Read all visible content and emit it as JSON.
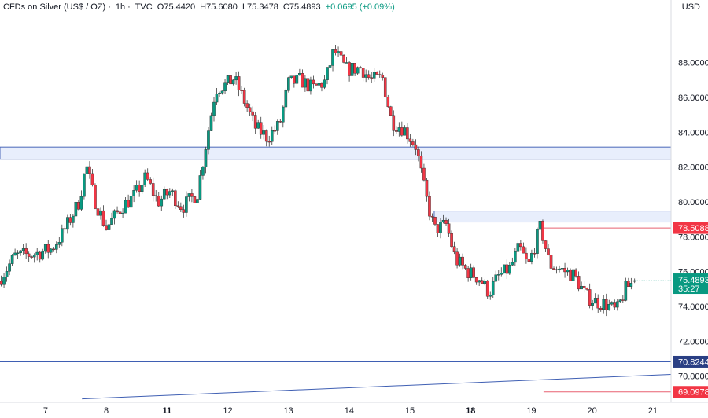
{
  "header": {
    "symbol": "CFDs on Silver (US$ / OZ)",
    "interval": "1h",
    "source": "TVC",
    "open": "O75.4420",
    "high": "H75.6080",
    "low": "L75.3478",
    "close": "C75.4893",
    "change": "+0.0695 (+0.09%)"
  },
  "currency": "USD",
  "colors": {
    "up": "#089981",
    "down": "#f23645",
    "zone_fill": "#e8eefc",
    "zone_border": "#4a67b8",
    "line_blue": "#3f5fb3",
    "line_red": "#e86171",
    "badge_green": "#089981",
    "badge_red": "#f23645",
    "badge_navy": "#2a3f84"
  },
  "chart_data": {
    "type": "candlestick",
    "ylim": [
      68.5,
      90.6
    ],
    "y_ticks": [
      "88.0000",
      "86.0000",
      "84.0000",
      "82.0000",
      "80.0000",
      "78.0000",
      "76.0000",
      "74.0000",
      "72.0000",
      "70.0000"
    ],
    "x_ticks": [
      {
        "label": "7",
        "bold": false,
        "t": 0.75
      },
      {
        "label": "8",
        "bold": false,
        "t": 1.75
      },
      {
        "label": "11",
        "bold": true,
        "t": 2.75
      },
      {
        "label": "12",
        "bold": false,
        "t": 3.75
      },
      {
        "label": "13",
        "bold": false,
        "t": 4.75
      },
      {
        "label": "14",
        "bold": false,
        "t": 5.75
      },
      {
        "label": "15",
        "bold": false,
        "t": 6.75
      },
      {
        "label": "18",
        "bold": true,
        "t": 7.75
      },
      {
        "label": "19",
        "bold": false,
        "t": 8.75
      },
      {
        "label": "20",
        "bold": false,
        "t": 9.75
      },
      {
        "label": "21",
        "bold": false,
        "t": 10.75
      }
    ],
    "x_range": [
      0,
      11.05
    ],
    "path": [
      [
        0.0,
        75.6
      ],
      [
        0.25,
        76.9
      ],
      [
        0.55,
        77.0
      ],
      [
        0.85,
        77.3
      ],
      [
        1.05,
        78.3
      ],
      [
        1.3,
        80.0
      ],
      [
        1.42,
        82.1
      ],
      [
        1.55,
        80.2
      ],
      [
        1.75,
        78.5
      ],
      [
        2.0,
        79.7
      ],
      [
        2.2,
        80.3
      ],
      [
        2.4,
        81.4
      ],
      [
        2.6,
        80.0
      ],
      [
        2.8,
        80.6
      ],
      [
        3.0,
        79.7
      ],
      [
        3.25,
        80.5
      ],
      [
        3.4,
        83.5
      ],
      [
        3.55,
        86.5
      ],
      [
        3.75,
        86.8
      ],
      [
        3.85,
        87.1
      ],
      [
        4.05,
        85.6
      ],
      [
        4.2,
        84.3
      ],
      [
        4.4,
        83.7
      ],
      [
        4.6,
        84.4
      ],
      [
        4.75,
        86.8
      ],
      [
        4.95,
        87.0
      ],
      [
        5.15,
        86.5
      ],
      [
        5.35,
        86.9
      ],
      [
        5.5,
        88.7
      ],
      [
        5.7,
        87.6
      ],
      [
        5.95,
        87.7
      ],
      [
        6.1,
        87.0
      ],
      [
        6.3,
        87.1
      ],
      [
        6.45,
        84.6
      ],
      [
        6.65,
        84.2
      ],
      [
        6.85,
        83.2
      ],
      [
        7.0,
        80.5
      ],
      [
        7.15,
        78.4
      ],
      [
        7.35,
        78.7
      ],
      [
        7.5,
        76.7
      ],
      [
        7.7,
        76.0
      ],
      [
        7.9,
        75.6
      ],
      [
        8.05,
        74.8
      ],
      [
        8.2,
        75.7
      ],
      [
        8.4,
        76.2
      ],
      [
        8.55,
        77.4
      ],
      [
        8.7,
        76.3
      ],
      [
        8.9,
        78.6
      ],
      [
        9.05,
        76.4
      ],
      [
        9.25,
        76.1
      ],
      [
        9.45,
        75.8
      ],
      [
        9.65,
        74.6
      ],
      [
        9.8,
        74.3
      ],
      [
        10.0,
        74.1
      ],
      [
        10.15,
        73.7
      ],
      [
        10.3,
        75.0
      ],
      [
        10.45,
        75.49
      ]
    ],
    "last_candle": {
      "open": 75.442,
      "high": 75.608,
      "low": 75.3478,
      "close": 75.4893
    },
    "zones": [
      {
        "y_low": 82.45,
        "y_high": 83.15,
        "x_start": 0,
        "x_end": 11.05
      },
      {
        "y_low": 78.85,
        "y_high": 79.48,
        "x_start": 7.15,
        "x_end": 11.05
      }
    ],
    "horizontal_lines": [
      {
        "y": 78.5088,
        "label": "78.5088",
        "color": "red",
        "x_start": 8.95,
        "badge": "red"
      },
      {
        "y": 70.8244,
        "label": "70.8244",
        "color": "blue",
        "x_start": 0,
        "badge": "navy"
      },
      {
        "y": 69.0978,
        "label": "69.0978",
        "color": "red",
        "x_start": 8.95,
        "badge": "red"
      }
    ],
    "trendline": {
      "start": [
        1.35,
        68.7
      ],
      "end": [
        11.05,
        70.1
      ]
    },
    "current_price": {
      "label": "75.4893",
      "countdown": "35:27",
      "value": 75.4893
    }
  }
}
